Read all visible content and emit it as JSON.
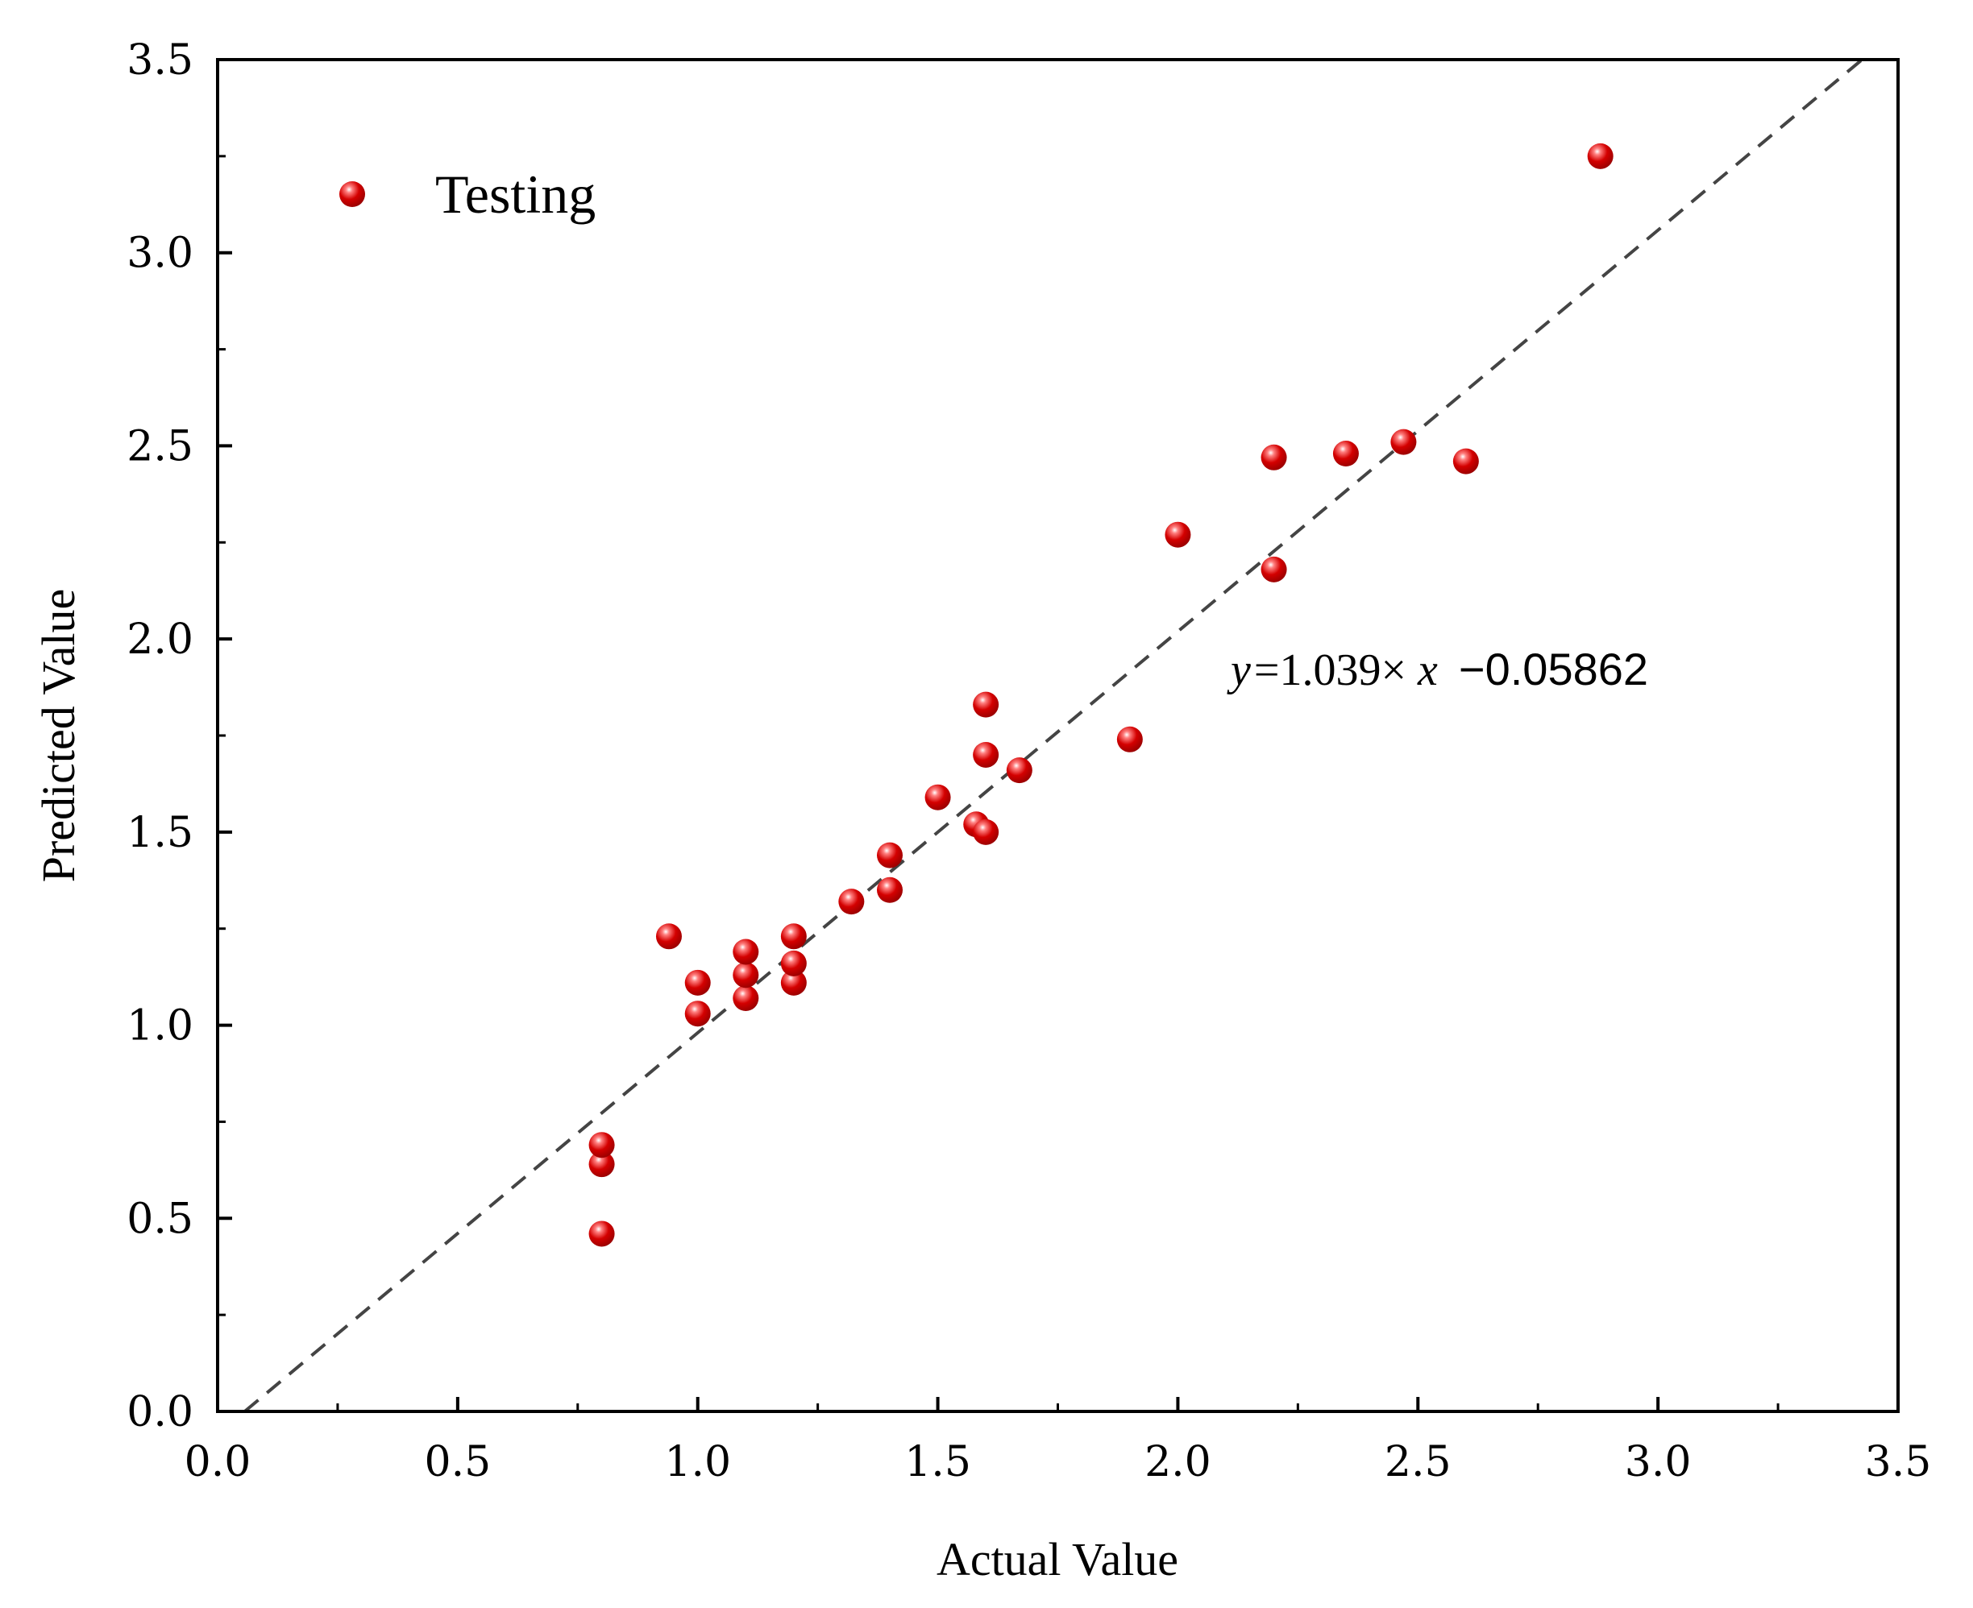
{
  "chart_data": {
    "type": "scatter",
    "title": "",
    "xlabel": "Actual Value",
    "ylabel": "Predicted Value",
    "xlim": [
      0.0,
      3.5
    ],
    "ylim": [
      0.0,
      3.5
    ],
    "xticks": [
      "0.0",
      "0.5",
      "1.0",
      "1.5",
      "2.0",
      "2.5",
      "3.0",
      "3.5"
    ],
    "yticks": [
      "0.0",
      "0.5",
      "1.0",
      "1.5",
      "2.0",
      "2.5",
      "3.0",
      "3.5"
    ],
    "grid": false,
    "legend": {
      "position": "top-left",
      "label": "Testing"
    },
    "series": [
      {
        "name": "Testing",
        "color": "#cc0000",
        "points": [
          [
            0.8,
            0.46
          ],
          [
            0.8,
            0.64
          ],
          [
            0.8,
            0.69
          ],
          [
            0.94,
            1.23
          ],
          [
            1.0,
            1.03
          ],
          [
            1.0,
            1.11
          ],
          [
            1.1,
            1.07
          ],
          [
            1.1,
            1.13
          ],
          [
            1.1,
            1.19
          ],
          [
            1.2,
            1.11
          ],
          [
            1.2,
            1.16
          ],
          [
            1.2,
            1.23
          ],
          [
            1.32,
            1.32
          ],
          [
            1.4,
            1.35
          ],
          [
            1.4,
            1.44
          ],
          [
            1.5,
            1.59
          ],
          [
            1.58,
            1.52
          ],
          [
            1.6,
            1.5
          ],
          [
            1.6,
            1.7
          ],
          [
            1.6,
            1.83
          ],
          [
            1.67,
            1.66
          ],
          [
            1.9,
            1.74
          ],
          [
            2.0,
            2.27
          ],
          [
            2.2,
            2.18
          ],
          [
            2.2,
            2.47
          ],
          [
            2.35,
            2.48
          ],
          [
            2.47,
            2.51
          ],
          [
            2.6,
            2.46
          ],
          [
            2.88,
            3.25
          ]
        ]
      }
    ],
    "fit_line": {
      "slope": 1.039,
      "intercept": -0.05862,
      "style": "dashed",
      "color": "#444444",
      "equation": {
        "y_var": "y",
        "eq_text": "=1.039×",
        "x_var": "x",
        "tail": "−0.05862"
      }
    }
  }
}
